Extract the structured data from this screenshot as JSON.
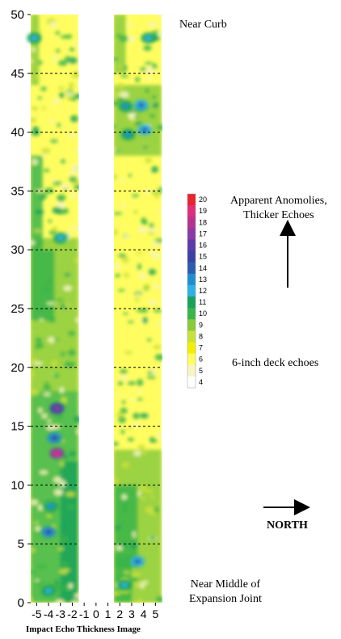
{
  "chart_data": {
    "type": "heatmap",
    "title": "",
    "caption": "Impact Echo Thickness Image",
    "xlabel": "",
    "ylabel": "",
    "x_ticks": [
      "-5",
      "-4",
      "-3",
      "-2",
      "-1",
      "0",
      "1",
      "2",
      "3",
      "4",
      "5"
    ],
    "y_ticks": [
      0,
      5,
      10,
      15,
      20,
      25,
      30,
      35,
      40,
      45,
      50
    ],
    "ylim": [
      0,
      50
    ],
    "xlim": [
      -5.5,
      5.5
    ],
    "data_strips": [
      {
        "name": "",
        "x_range": [
          -5.5,
          -1.5
        ]
      },
      {
        "name": "",
        "x_range": [
          1.5,
          5.5
        ]
      }
    ],
    "gap_x_range": [
      -1.5,
      1.5
    ],
    "dashed_gridlines_y": [
      5,
      10,
      15,
      20,
      25,
      30,
      35,
      40,
      45
    ],
    "colorbar": {
      "ticks": [
        4,
        5,
        6,
        7,
        8,
        9,
        10,
        11,
        12,
        13,
        14,
        15,
        16,
        17,
        18,
        19,
        20
      ],
      "colors": [
        "#ffffff",
        "#f6f6c0",
        "#fffd60",
        "#f2f000",
        "#c9e23a",
        "#8acb3c",
        "#3ab54a",
        "#16a35a",
        "#2fb1e6",
        "#1d8fd0",
        "#2a5db0",
        "#3b40a6",
        "#5d3aa8",
        "#8a3aa8",
        "#b7328f",
        "#e02c7a",
        "#e8242e"
      ]
    },
    "hotspots": [
      {
        "x": -3.3,
        "y": 12.7,
        "value": 19
      },
      {
        "x": -3.3,
        "y": 16.5,
        "value": 17
      },
      {
        "x": -3.5,
        "y": 14.0,
        "value": 15
      },
      {
        "x": -4.0,
        "y": 6.0,
        "value": 15
      },
      {
        "x": -3.8,
        "y": 8.2,
        "value": 13
      },
      {
        "x": 3.8,
        "y": 42.3,
        "value": 14
      },
      {
        "x": 2.5,
        "y": 42.2,
        "value": 13
      },
      {
        "x": 4.1,
        "y": 40.2,
        "value": 14
      },
      {
        "x": 2.7,
        "y": 39.8,
        "value": 13
      },
      {
        "x": 3.5,
        "y": 3.5,
        "value": 14
      },
      {
        "x": 4.4,
        "y": 48.0,
        "value": 12
      },
      {
        "x": 2.4,
        "y": 1.5,
        "value": 12
      },
      {
        "x": -5.2,
        "y": 48.0,
        "value": 12
      },
      {
        "x": -4.0,
        "y": 1.0,
        "value": 12
      },
      {
        "x": -3.0,
        "y": 31.0,
        "value": 12
      }
    ],
    "annotations": {
      "top": "Near Curb",
      "anomaly": [
        "Apparent Anomolies,",
        "Thicker Echoes"
      ],
      "deck": "6-inch deck echoes",
      "north": "NORTH",
      "bottom": [
        "Near Middle of",
        "Expansion Joint"
      ]
    }
  }
}
